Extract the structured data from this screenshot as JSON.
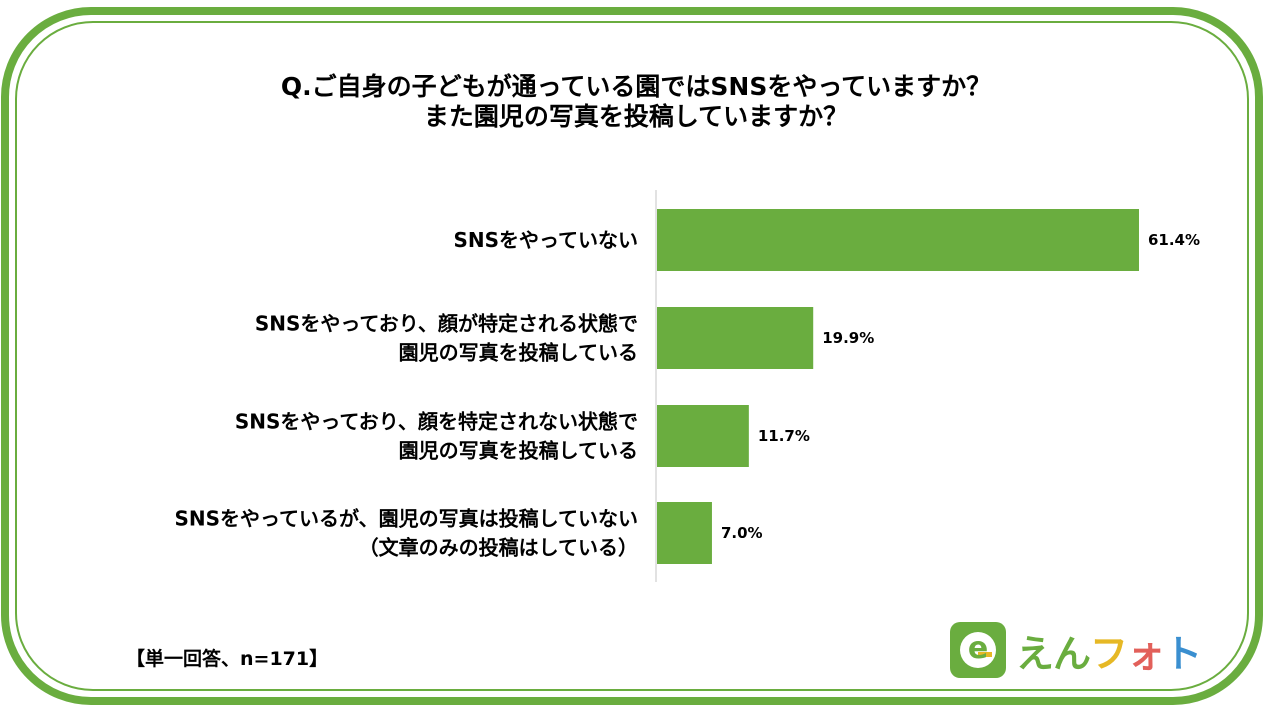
{
  "title_lines": [
    "Q.ご自身の子どもが通っている園ではSNSをやっていますか？",
    "また園児の写真を投稿していますか？"
  ],
  "footnote": "【単一回答、n=171】",
  "logo": {
    "icon_letter": "e",
    "text": [
      {
        "char": "え",
        "color": "#6aad3f"
      },
      {
        "char": "ん",
        "color": "#6aad3f"
      },
      {
        "char": "フ",
        "color": "#e6b825"
      },
      {
        "char": "ォ",
        "color": "#e2605a"
      },
      {
        "char": "ト",
        "color": "#3a8fd0"
      }
    ]
  },
  "colors": {
    "frame": "#6aad3f",
    "bar": "#6aad3f",
    "axis": "#d9d9d9"
  },
  "chart_data": {
    "type": "bar",
    "orientation": "horizontal",
    "title": "Q.ご自身の子どもが通っている園ではSNSをやっていますか？ また園児の写真を投稿していますか？",
    "categories": [
      [
        "SNSをやっていない"
      ],
      [
        "SNSをやっており、顔が特定される状態で",
        "園児の写真を投稿している"
      ],
      [
        "SNSをやっており、顔を特定されない状態で",
        "園児の写真を投稿している"
      ],
      [
        "SNSをやっているが、園児の写真は投稿していない",
        "（文章のみの投稿はしている）"
      ]
    ],
    "values": [
      61.4,
      19.9,
      11.7,
      7.0
    ],
    "value_labels": [
      "61.4%",
      "19.9%",
      "11.7%",
      "7.0%"
    ],
    "unit": "%",
    "xlim": [
      0,
      100
    ],
    "grid": false,
    "legend": "none"
  }
}
